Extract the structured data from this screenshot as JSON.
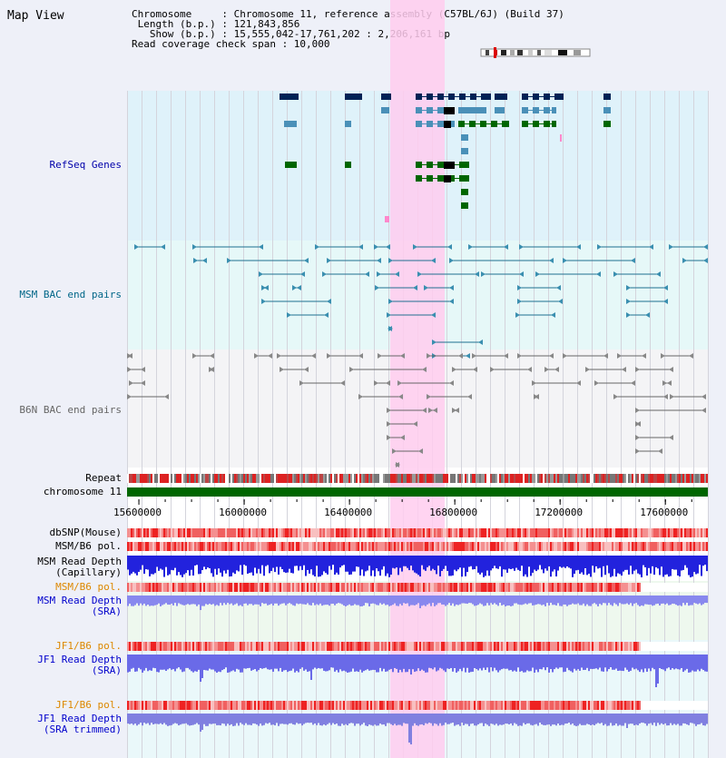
{
  "view": {
    "title": "Map View"
  },
  "info": {
    "chromosome_line": "Chromosome     : Chromosome 11, reference assembly (C57BL/6J) (Build 37)",
    "length_line": " Length (b.p.) : 121,843,856",
    "show_line": "   Show (b.p.) : 15,555,042-17,761,202 : 2,206,161 bp",
    "coverage_line": "Read coverage check span : 10,000"
  },
  "tracks": {
    "refseq": "RefSeq Genes",
    "msm_bac": "MSM BAC end pairs",
    "b6n_bac": "B6N BAC end pairs",
    "repeat": "Repeat",
    "chromosome": "chromosome 11",
    "dbsnp": "dbSNP(Mouse)",
    "msm_b6_pol": "MSM/B6 pol.",
    "msm_depth_cap_1": "MSM Read Depth",
    "msm_depth_cap_2": "(Capillary)",
    "msm_b6_pol_2": "MSM/B6 pol.",
    "msm_depth_sra_1": "MSM Read Depth",
    "msm_depth_sra_2": "(SRA)",
    "jf1_b6_pol": "JF1/B6 pol.",
    "jf1_depth_sra_1": "JF1 Read Depth",
    "jf1_depth_sra_2": "(SRA)",
    "jf1_b6_pol_2": "JF1/B6 pol.",
    "jf1_depth_trim_1": "JF1 Read Depth",
    "jf1_depth_trim_2": "(SRA trimmed)"
  },
  "axis": {
    "ticks": [
      "15600000",
      "16000000",
      "16400000",
      "16800000",
      "17200000",
      "17600000"
    ],
    "tick_values": [
      15600000,
      16000000,
      16400000,
      16800000,
      17200000,
      17600000
    ],
    "range": [
      15555042,
      17761202
    ]
  },
  "highlight": {
    "start": 16420000,
    "end": 16620000
  },
  "colors": {
    "refseq_label": "#0000aa",
    "msm_label": "#006688",
    "b6n_label": "#666666",
    "orange_label": "#dd8800",
    "blue_label": "#0000cc",
    "highlight": "#ffccee",
    "gene_dark": "#002255",
    "gene_mid": "#4a90b8",
    "gene_green": "#006600",
    "chrom_green": "#006600",
    "depth_blue": "#6666ee"
  }
}
